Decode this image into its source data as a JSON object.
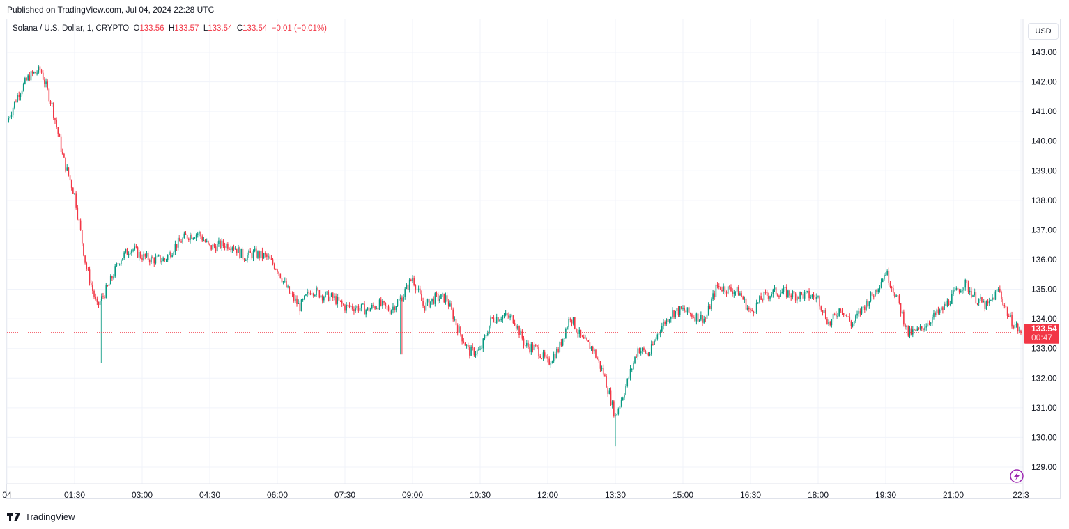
{
  "published": "Published on TradingView.com, Jul 04, 2024 22:28 UTC",
  "legend": {
    "symbol": "Solana / U.S. Dollar, 1, CRYPTO",
    "o_label": "O",
    "o": "133.56",
    "h_label": "H",
    "h": "133.57",
    "l_label": "L",
    "l": "133.54",
    "c_label": "C",
    "c": "133.54",
    "change": "−0.01 (−0.01%)"
  },
  "currency_button": "USD",
  "branding": "TradingView",
  "colors": {
    "up": "#089981",
    "down": "#f23645",
    "grid": "#f0f3fa",
    "text": "#131722",
    "lightning": "#9c27b0"
  },
  "chart_data": {
    "type": "candlestick",
    "title": "Solana / U.S. Dollar, 1, CRYPTO",
    "ylim": [
      128.6,
      144.1
    ],
    "y_ticks": [
      "143.00",
      "142.00",
      "141.00",
      "140.00",
      "139.00",
      "138.00",
      "137.00",
      "136.00",
      "135.00",
      "134.00",
      "133.00",
      "132.00",
      "131.00",
      "130.00",
      "129.00"
    ],
    "x_ticks": [
      "04",
      "01:30",
      "03:00",
      "04:30",
      "06:00",
      "07:30",
      "09:00",
      "10:30",
      "12:00",
      "13:30",
      "15:00",
      "16:30",
      "18:00",
      "19:30",
      "21:00",
      "22:3"
    ],
    "grid": true,
    "interval_minutes": 15,
    "start_time": "00:00",
    "closes": [
      140.65,
      141.6,
      142.2,
      142.4,
      141.2,
      139.4,
      138.2,
      135.8,
      134.4,
      135.1,
      136.0,
      136.4,
      136.1,
      136.0,
      136.0,
      136.5,
      136.8,
      136.9,
      136.4,
      136.5,
      136.5,
      136.1,
      136.2,
      136.1,
      135.7,
      134.9,
      134.4,
      135.0,
      134.8,
      134.7,
      134.4,
      134.4,
      134.3,
      134.5,
      134.3,
      134.7,
      135.4,
      134.4,
      134.7,
      134.7,
      133.7,
      132.9,
      132.9,
      134.0,
      134.1,
      134.0,
      133.1,
      133.0,
      132.5,
      133.0,
      134.1,
      133.3,
      133.0,
      132.1,
      130.7,
      131.8,
      133.0,
      132.8,
      133.7,
      134.2,
      134.3,
      134.1,
      134.0,
      135.1,
      135.0,
      134.9,
      134.2,
      134.7,
      134.9,
      134.9,
      134.8,
      134.8,
      134.7,
      133.8,
      134.4,
      133.8,
      134.4,
      134.9,
      135.6,
      134.7,
      133.5,
      133.6,
      134.0,
      134.3,
      134.8,
      135.2,
      134.7,
      134.4,
      135.0,
      134.0,
      133.54
    ],
    "notable_lows": [
      {
        "time": "02:05",
        "price": 132.5
      },
      {
        "time": "08:45",
        "price": 132.8
      },
      {
        "time": "13:30",
        "price": 129.7
      }
    ],
    "last_price": "133.54",
    "countdown": "00:47"
  }
}
